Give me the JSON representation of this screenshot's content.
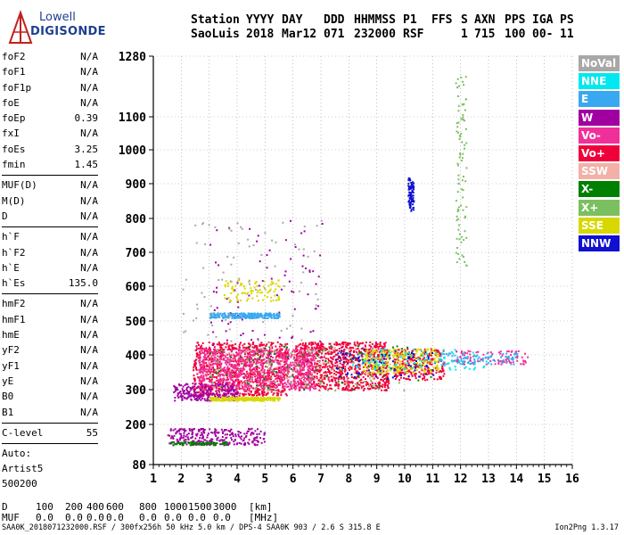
{
  "logo": {
    "line1": "Lowell",
    "line2": "DIGISONDE"
  },
  "header": {
    "col_station": [
      "Station",
      "SaoLuis"
    ],
    "col_year": [
      "YYYY",
      "2018"
    ],
    "col_day": [
      "DAY",
      "Mar12"
    ],
    "col_ddd": [
      "DDD",
      "071"
    ],
    "col_time": [
      "HHMMSS",
      "232000"
    ],
    "col_p1": [
      "P1",
      "RSF"
    ],
    "col_ffs": [
      "FFS",
      ""
    ],
    "col_s": [
      "S",
      "1"
    ],
    "col_axn": [
      "AXN",
      "715"
    ],
    "col_pps": [
      "PPS",
      "100"
    ],
    "col_iga": [
      "IGA",
      "00-"
    ],
    "col_ps": [
      "PS",
      "11"
    ]
  },
  "params_group1": [
    {
      "k": "foF2",
      "v": "N/A"
    },
    {
      "k": "foF1",
      "v": "N/A"
    },
    {
      "k": "foF1p",
      "v": "N/A"
    },
    {
      "k": "foE",
      "v": "N/A"
    },
    {
      "k": "foEp",
      "v": "0.39"
    },
    {
      "k": "fxI",
      "v": "N/A"
    },
    {
      "k": "foEs",
      "v": "3.25"
    },
    {
      "k": "fmin",
      "v": "1.45"
    }
  ],
  "params_group2": [
    {
      "k": "MUF(D)",
      "v": "N/A"
    },
    {
      "k": "M(D)",
      "v": "N/A"
    },
    {
      "k": "D",
      "v": "N/A"
    }
  ],
  "params_group3": [
    {
      "k": "h`F",
      "v": "N/A"
    },
    {
      "k": "h`F2",
      "v": "N/A"
    },
    {
      "k": "h`E",
      "v": "N/A"
    },
    {
      "k": "h`Es",
      "v": "135.0"
    }
  ],
  "params_group4": [
    {
      "k": "hmF2",
      "v": "N/A"
    },
    {
      "k": "hmF1",
      "v": "N/A"
    },
    {
      "k": "hmE",
      "v": "N/A"
    },
    {
      "k": "yF2",
      "v": "N/A"
    },
    {
      "k": "yF1",
      "v": "N/A"
    },
    {
      "k": "yE",
      "v": "N/A"
    },
    {
      "k": "B0",
      "v": "N/A"
    },
    {
      "k": "B1",
      "v": "N/A"
    }
  ],
  "params_group5": [
    {
      "k": "C-level",
      "v": "55"
    }
  ],
  "notes": [
    "Auto:",
    "Artist5",
    "500200"
  ],
  "legend": [
    {
      "label": "NoVal",
      "color": "#a8a8a8"
    },
    {
      "label": "NNE",
      "color": "#00e8f0"
    },
    {
      "label": "E",
      "color": "#3aa8f0"
    },
    {
      "label": "W",
      "color": "#a000a0"
    },
    {
      "label": "Vo-",
      "color": "#f0309a"
    },
    {
      "label": "Vo+",
      "color": "#f0003a"
    },
    {
      "label": "SSW",
      "color": "#f2b0a8"
    },
    {
      "label": "X-",
      "color": "#008000"
    },
    {
      "label": "X+",
      "color": "#7ac060"
    },
    {
      "label": "SSE",
      "color": "#d8d800"
    },
    {
      "label": "NNW",
      "color": "#1010d0"
    }
  ],
  "bottom": {
    "d_label": "D",
    "d_values": [
      "100",
      "200",
      "400",
      "600",
      "800",
      "1000",
      "1500",
      "3000",
      "[km]"
    ],
    "muf_label": "MUF",
    "muf_values": [
      "0.0",
      "0.0",
      "0.0",
      "0.0",
      "0.0",
      "0.0",
      "0.0",
      "0.0",
      "[MHz]"
    ],
    "footer": "SAA0K_2018071232000.RSF / 300fx256h 50 kHz 5.0 km / DPS-4 SAA0K 903 / 2.6 S 315.8 E",
    "version": "Ion2Png 1.3.17"
  },
  "chart_data": {
    "type": "scatter",
    "title": "",
    "xlabel": "",
    "ylabel": "",
    "xlim": [
      1,
      16
    ],
    "ylim": [
      80,
      1280
    ],
    "x_ticks": [
      1,
      2,
      3,
      4,
      5,
      6,
      7,
      8,
      9,
      10,
      11,
      12,
      13,
      14,
      15,
      16
    ],
    "y_ticks": [
      80,
      200,
      300,
      400,
      500,
      600,
      700,
      800,
      900,
      1000,
      1100,
      1280
    ],
    "y_scale": "nonlinear ionogram height scale",
    "grid": true,
    "legend_position": "right",
    "series": [
      {
        "name": "Vo+",
        "color": "#f0003a",
        "regions": [
          {
            "f": [
              2.4,
              5.8
            ],
            "h": [
              285,
              440
            ],
            "density": "high"
          },
          {
            "f": [
              6.0,
              9.4
            ],
            "h": [
              300,
              440
            ],
            "density": "high"
          },
          {
            "f": [
              9.6,
              11.4
            ],
            "h": [
              330,
              420
            ],
            "density": "medium"
          }
        ]
      },
      {
        "name": "Vo-",
        "color": "#f0309a",
        "regions": [
          {
            "f": [
              2.6,
              6.8
            ],
            "h": [
              300,
              420
            ],
            "density": "high"
          },
          {
            "f": [
              11.8,
              14.4
            ],
            "h": [
              375,
              415
            ],
            "density": "low"
          }
        ]
      },
      {
        "name": "W",
        "color": "#a000a0",
        "regions": [
          {
            "f": [
              1.5,
              5.0
            ],
            "h": [
              140,
              190
            ],
            "density": "medium"
          },
          {
            "f": [
              3.0,
              7.2
            ],
            "h": [
              380,
              800
            ],
            "density": "low"
          },
          {
            "f": [
              1.7,
              4.0
            ],
            "h": [
              270,
              320
            ],
            "density": "medium"
          }
        ]
      },
      {
        "name": "X-",
        "color": "#008000",
        "regions": [
          {
            "f": [
              1.6,
              3.6
            ],
            "h": [
              140,
              150
            ],
            "density": "low"
          },
          {
            "f": [
              3.0,
              11.0
            ],
            "h": [
              300,
              430
            ],
            "density": "low"
          }
        ]
      },
      {
        "name": "SSE",
        "color": "#d8d800",
        "regions": [
          {
            "f": [
              3.0,
              5.5
            ],
            "h": [
              270,
              280
            ],
            "density": "medium"
          },
          {
            "f": [
              3.5,
              5.5
            ],
            "h": [
              560,
              620
            ],
            "density": "low"
          },
          {
            "f": [
              8.5,
              11.2
            ],
            "h": [
              350,
              420
            ],
            "density": "medium"
          }
        ]
      },
      {
        "name": "E",
        "color": "#3aa8f0",
        "regions": [
          {
            "f": [
              3.0,
              5.5
            ],
            "h": [
              510,
              525
            ],
            "density": "medium"
          },
          {
            "f": [
              11.2,
              14.0
            ],
            "h": [
              375,
              410
            ],
            "density": "low"
          }
        ]
      },
      {
        "name": "NNW",
        "color": "#1010d0",
        "regions": [
          {
            "f": [
              7.5,
              11.0
            ],
            "h": [
              330,
              420
            ],
            "density": "low"
          },
          {
            "f": [
              10.1,
              10.3
            ],
            "h": [
              820,
              920
            ],
            "density": "low"
          }
        ]
      },
      {
        "name": "NNE",
        "color": "#00e8f0",
        "regions": [
          {
            "f": [
              8.0,
              13.0
            ],
            "h": [
              360,
              420
            ],
            "density": "low"
          }
        ]
      },
      {
        "name": "SSW",
        "color": "#f2b0a8",
        "regions": [
          {
            "f": [
              3.0,
              9.0
            ],
            "h": [
              300,
              430
            ],
            "density": "low"
          }
        ]
      },
      {
        "name": "X+",
        "color": "#7ac060",
        "regions": [
          {
            "f": [
              3.0,
              10.0
            ],
            "h": [
              300,
              420
            ],
            "density": "low"
          },
          {
            "f": [
              11.8,
              12.2
            ],
            "h": [
              660,
              1240
            ],
            "density": "low"
          }
        ]
      },
      {
        "name": "NoVal",
        "color": "#a8a8a8",
        "regions": [
          {
            "f": [
              2.0,
              7.0
            ],
            "h": [
              380,
              800
            ],
            "density": "low"
          }
        ]
      }
    ]
  }
}
